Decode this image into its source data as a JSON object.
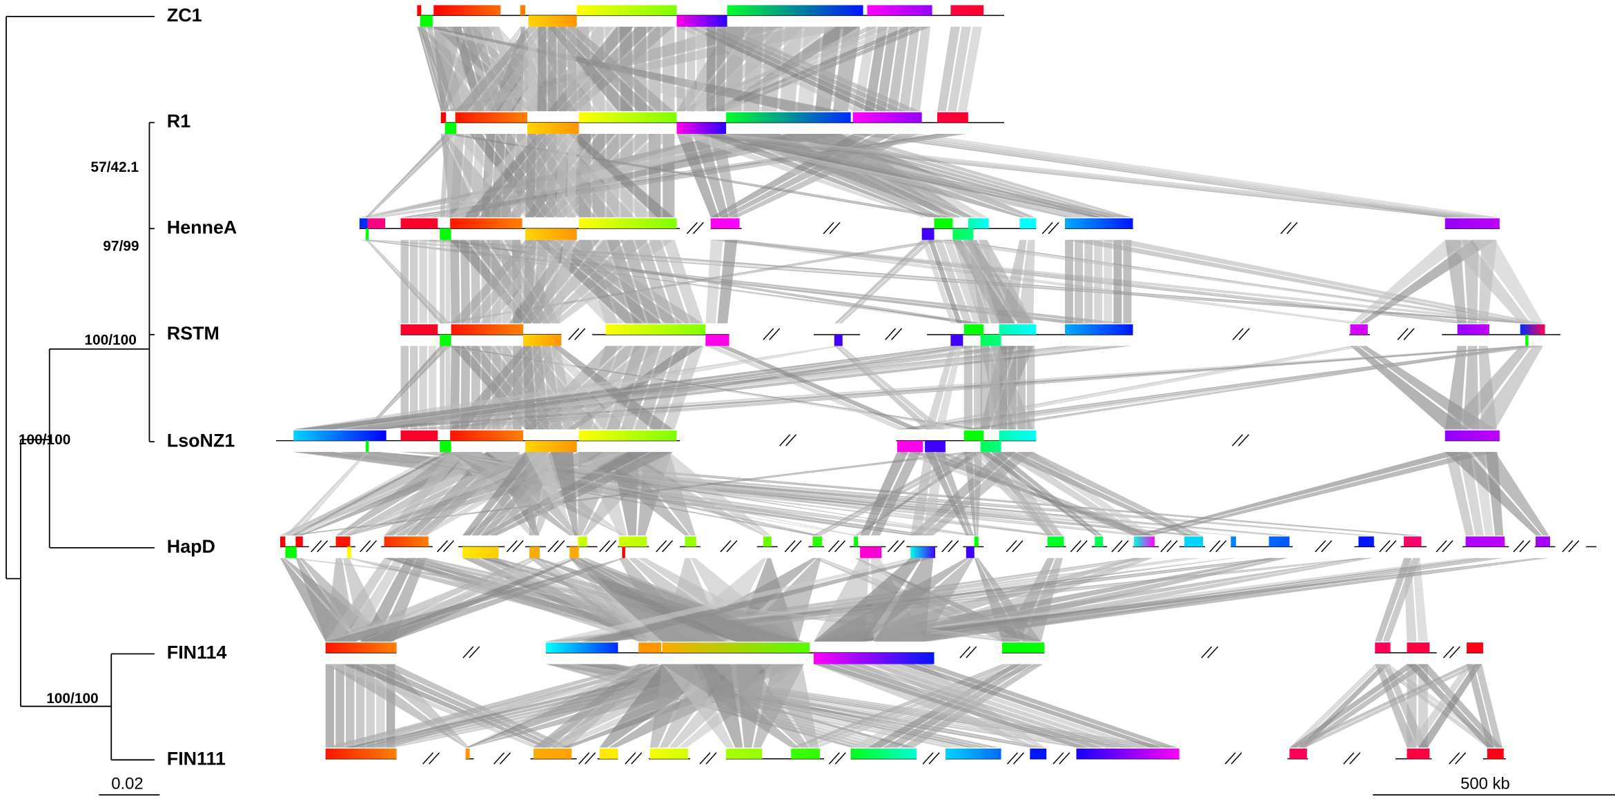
{
  "taxa": [
    {
      "label": "ZC1"
    },
    {
      "label": "R1"
    },
    {
      "label": "HenneA"
    },
    {
      "label": "RSTM"
    },
    {
      "label": "LsoNZ1"
    },
    {
      "label": "HapD"
    },
    {
      "label": "FIN114"
    },
    {
      "label": "FIN111"
    }
  ],
  "support": [
    "57/42.1",
    "97/99",
    "100/100",
    "100/100",
    "100/100"
  ],
  "tree_scale": "0.02",
  "genome_scale": "500 kb"
}
